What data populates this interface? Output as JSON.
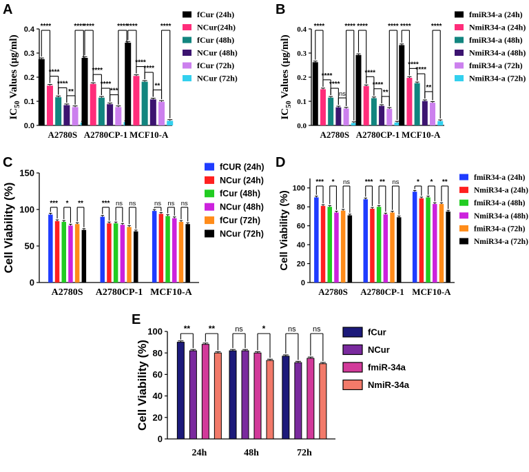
{
  "chart_data": [
    {
      "id": "A",
      "type": "bar",
      "panel_label": "A",
      "ylabel": "IC50 Values (μg/ml)",
      "ylabel_main": "IC",
      "ylabel_sub": "50",
      "ylabel_rest": " Values (μg/ml)",
      "ylim": [
        0,
        0.4
      ],
      "yticks": [
        "0.0",
        "0.1",
        "0.2",
        "0.3",
        "0.4"
      ],
      "categories": [
        "A2780S",
        "A2780CP-1",
        "MCF10-A"
      ],
      "series": [
        {
          "name": "fCur (24h)",
          "color": "#000000",
          "values": [
            0.275,
            0.28,
            0.343
          ]
        },
        {
          "name": "NCur(24h)",
          "color": "#ff2d7a",
          "values": [
            0.165,
            0.172,
            0.205
          ]
        },
        {
          "name": "fCur (48h)",
          "color": "#12857f",
          "values": [
            0.117,
            0.115,
            0.181
          ]
        },
        {
          "name": "NCur (48h)",
          "color": "#3c1470",
          "values": [
            0.084,
            0.088,
            0.108
          ]
        },
        {
          "name": "fCur (72h)",
          "color": "#cc80ee",
          "values": [
            0.076,
            0.076,
            0.098
          ]
        },
        {
          "name": "NCur (72h)",
          "color": "#33d0ee",
          "values": [
            0.012,
            0.014,
            0.019
          ]
        }
      ],
      "significance": [
        {
          "cat": 0,
          "from": 0,
          "to": 1,
          "label": "****"
        },
        {
          "cat": 0,
          "from": 1,
          "to": 2,
          "label": "****"
        },
        {
          "cat": 0,
          "from": 2,
          "to": 3,
          "label": "****"
        },
        {
          "cat": 0,
          "from": 3,
          "to": 4,
          "label": "**"
        },
        {
          "cat": 0,
          "from": 4,
          "to": 5,
          "label": "****"
        },
        {
          "cat": 1,
          "from": 0,
          "to": 1,
          "label": "****"
        },
        {
          "cat": 1,
          "from": 1,
          "to": 2,
          "label": "****"
        },
        {
          "cat": 1,
          "from": 2,
          "to": 3,
          "label": "****"
        },
        {
          "cat": 1,
          "from": 3,
          "to": 4,
          "label": "***"
        },
        {
          "cat": 1,
          "from": 4,
          "to": 5,
          "label": "****"
        },
        {
          "cat": 2,
          "from": 0,
          "to": 1,
          "label": "****"
        },
        {
          "cat": 2,
          "from": 1,
          "to": 2,
          "label": "****"
        },
        {
          "cat": 2,
          "from": 2,
          "to": 3,
          "label": "****"
        },
        {
          "cat": 2,
          "from": 3,
          "to": 4,
          "label": "**"
        },
        {
          "cat": 2,
          "from": 4,
          "to": 5,
          "label": "****"
        }
      ]
    },
    {
      "id": "B",
      "type": "bar",
      "panel_label": "B",
      "ylabel": "IC50 Values (μg/ml)",
      "ylabel_main": "IC",
      "ylabel_sub": "50",
      "ylabel_rest": " Values (μg/ml)",
      "ylim": [
        0,
        0.4
      ],
      "yticks": [
        "0.0",
        "0.1",
        "0.2",
        "0.3",
        "0.4"
      ],
      "categories": [
        "A2780S",
        "A2780CP-1",
        "MCF10-A"
      ],
      "series": [
        {
          "name": "fmiR34-a (24h)",
          "color": "#000000",
          "values": [
            0.262,
            0.292,
            0.333
          ]
        },
        {
          "name": "NmiR34-a (24h)",
          "color": "#ff2d7a",
          "values": [
            0.15,
            0.163,
            0.197
          ]
        },
        {
          "name": "fmiR34-a (48h)",
          "color": "#12857f",
          "values": [
            0.115,
            0.113,
            0.175
          ]
        },
        {
          "name": "NmiR34-a (48h)",
          "color": "#3c1470",
          "values": [
            0.075,
            0.081,
            0.101
          ]
        },
        {
          "name": "fmiR34-a (72h)",
          "color": "#cc80ee",
          "values": [
            0.07,
            0.069,
            0.094
          ]
        },
        {
          "name": "NmiR34-a (72h)",
          "color": "#33d0ee",
          "values": [
            0.01,
            0.012,
            0.018
          ]
        }
      ],
      "significance": [
        {
          "cat": 0,
          "from": 0,
          "to": 1,
          "label": "****"
        },
        {
          "cat": 0,
          "from": 1,
          "to": 2,
          "label": "****"
        },
        {
          "cat": 0,
          "from": 2,
          "to": 3,
          "label": "****"
        },
        {
          "cat": 0,
          "from": 3,
          "to": 4,
          "label": "ns"
        },
        {
          "cat": 0,
          "from": 4,
          "to": 5,
          "label": "****"
        },
        {
          "cat": 1,
          "from": 0,
          "to": 1,
          "label": "****"
        },
        {
          "cat": 1,
          "from": 1,
          "to": 2,
          "label": "****"
        },
        {
          "cat": 1,
          "from": 2,
          "to": 3,
          "label": "****"
        },
        {
          "cat": 1,
          "from": 3,
          "to": 4,
          "label": "**"
        },
        {
          "cat": 1,
          "from": 4,
          "to": 5,
          "label": "****"
        },
        {
          "cat": 2,
          "from": 0,
          "to": 1,
          "label": "****"
        },
        {
          "cat": 2,
          "from": 1,
          "to": 2,
          "label": "****"
        },
        {
          "cat": 2,
          "from": 2,
          "to": 3,
          "label": "****"
        },
        {
          "cat": 2,
          "from": 3,
          "to": 4,
          "label": "**"
        },
        {
          "cat": 2,
          "from": 4,
          "to": 5,
          "label": "****"
        }
      ]
    },
    {
      "id": "C",
      "type": "bar",
      "panel_label": "C",
      "ylabel": "Cell Viability (%)",
      "ylim": [
        0,
        150
      ],
      "yticks": [
        "0",
        "50",
        "100",
        "150"
      ],
      "categories": [
        "A2780S",
        "A2780CP-1",
        "MCF10-A"
      ],
      "series": [
        {
          "name": "fCUR (24h)",
          "color": "#1f3cff",
          "values": [
            93,
            90,
            98
          ]
        },
        {
          "name": "NCur (24h)",
          "color": "#ff2020",
          "values": [
            84,
            81,
            94
          ]
        },
        {
          "name": "fCur (48h)",
          "color": "#22cc22",
          "values": [
            83,
            81,
            91
          ]
        },
        {
          "name": "NCur (48h)",
          "color": "#cc22dd",
          "values": [
            78,
            79,
            88
          ]
        },
        {
          "name": "fCur (72h)",
          "color": "#ff8c1a",
          "values": [
            80,
            76,
            83
          ]
        },
        {
          "name": "NCur (72h)",
          "color": "#000000",
          "values": [
            72,
            70,
            80
          ]
        }
      ],
      "significance": [
        {
          "cat": 0,
          "from": 0,
          "to": 1,
          "label": "***"
        },
        {
          "cat": 0,
          "from": 2,
          "to": 3,
          "label": "*"
        },
        {
          "cat": 0,
          "from": 4,
          "to": 5,
          "label": "**"
        },
        {
          "cat": 1,
          "from": 0,
          "to": 1,
          "label": "***"
        },
        {
          "cat": 1,
          "from": 2,
          "to": 3,
          "label": "ns"
        },
        {
          "cat": 1,
          "from": 4,
          "to": 5,
          "label": "ns"
        },
        {
          "cat": 2,
          "from": 0,
          "to": 1,
          "label": "ns"
        },
        {
          "cat": 2,
          "from": 2,
          "to": 3,
          "label": "ns"
        },
        {
          "cat": 2,
          "from": 4,
          "to": 5,
          "label": "ns"
        }
      ]
    },
    {
      "id": "D",
      "type": "bar",
      "panel_label": "D",
      "ylabel": "Cell Viability (%)",
      "ylim": [
        0,
        110
      ],
      "yticks": [
        "0",
        "20",
        "40",
        "60",
        "80",
        "100"
      ],
      "categories": [
        "A2780S",
        "A2780CP-1",
        "MCF10-A"
      ],
      "series": [
        {
          "name": "fmiR34-a (24h)",
          "color": "#1f3cff",
          "values": [
            90,
            88,
            96
          ]
        },
        {
          "name": "NmiR34-a (24h)",
          "color": "#ff2020",
          "values": [
            81,
            78,
            89
          ]
        },
        {
          "name": "fmiR34-a (48h)",
          "color": "#22cc22",
          "values": [
            80,
            80,
            90
          ]
        },
        {
          "name": "NmiR34-a (48h)",
          "color": "#cc22dd",
          "values": [
            74,
            72,
            83
          ]
        },
        {
          "name": "fmiR34-a (72h)",
          "color": "#ff8c1a",
          "values": [
            76,
            74,
            83
          ]
        },
        {
          "name": "NmiR34-a (72h)",
          "color": "#000000",
          "values": [
            71,
            69,
            75
          ]
        }
      ],
      "significance": [
        {
          "cat": 0,
          "from": 0,
          "to": 1,
          "label": "***"
        },
        {
          "cat": 0,
          "from": 2,
          "to": 3,
          "label": "*"
        },
        {
          "cat": 0,
          "from": 4,
          "to": 5,
          "label": "ns"
        },
        {
          "cat": 1,
          "from": 0,
          "to": 1,
          "label": "***"
        },
        {
          "cat": 1,
          "from": 2,
          "to": 3,
          "label": "**"
        },
        {
          "cat": 1,
          "from": 4,
          "to": 5,
          "label": "ns"
        },
        {
          "cat": 2,
          "from": 0,
          "to": 1,
          "label": "*"
        },
        {
          "cat": 2,
          "from": 2,
          "to": 3,
          "label": "*"
        },
        {
          "cat": 2,
          "from": 4,
          "to": 5,
          "label": "**"
        }
      ]
    },
    {
      "id": "E",
      "type": "bar",
      "panel_label": "E",
      "ylabel": "Cell Viability (%)",
      "ylim": [
        0,
        100
      ],
      "yticks": [
        "0",
        "20",
        "40",
        "60",
        "80",
        "100"
      ],
      "categories": [
        "24h",
        "48h",
        "72h"
      ],
      "series": [
        {
          "name": "fCur",
          "color": "#1c1a7a",
          "values": [
            90,
            82,
            77
          ]
        },
        {
          "name": "NCur",
          "color": "#7a2a9e",
          "values": [
            82,
            82,
            71
          ]
        },
        {
          "name": "fmiR-34a",
          "color": "#d23a9a",
          "values": [
            88,
            80,
            75
          ]
        },
        {
          "name": "NmiR-34a",
          "color": "#f27a6a",
          "values": [
            80,
            73,
            70
          ]
        }
      ],
      "significance": [
        {
          "cat": 0,
          "from": 0,
          "to": 1,
          "label": "**"
        },
        {
          "cat": 0,
          "from": 2,
          "to": 3,
          "label": "**"
        },
        {
          "cat": 1,
          "from": 0,
          "to": 1,
          "label": "ns"
        },
        {
          "cat": 1,
          "from": 2,
          "to": 3,
          "label": "*"
        },
        {
          "cat": 2,
          "from": 0,
          "to": 1,
          "label": "ns"
        },
        {
          "cat": 2,
          "from": 2,
          "to": 3,
          "label": "ns"
        }
      ]
    }
  ]
}
